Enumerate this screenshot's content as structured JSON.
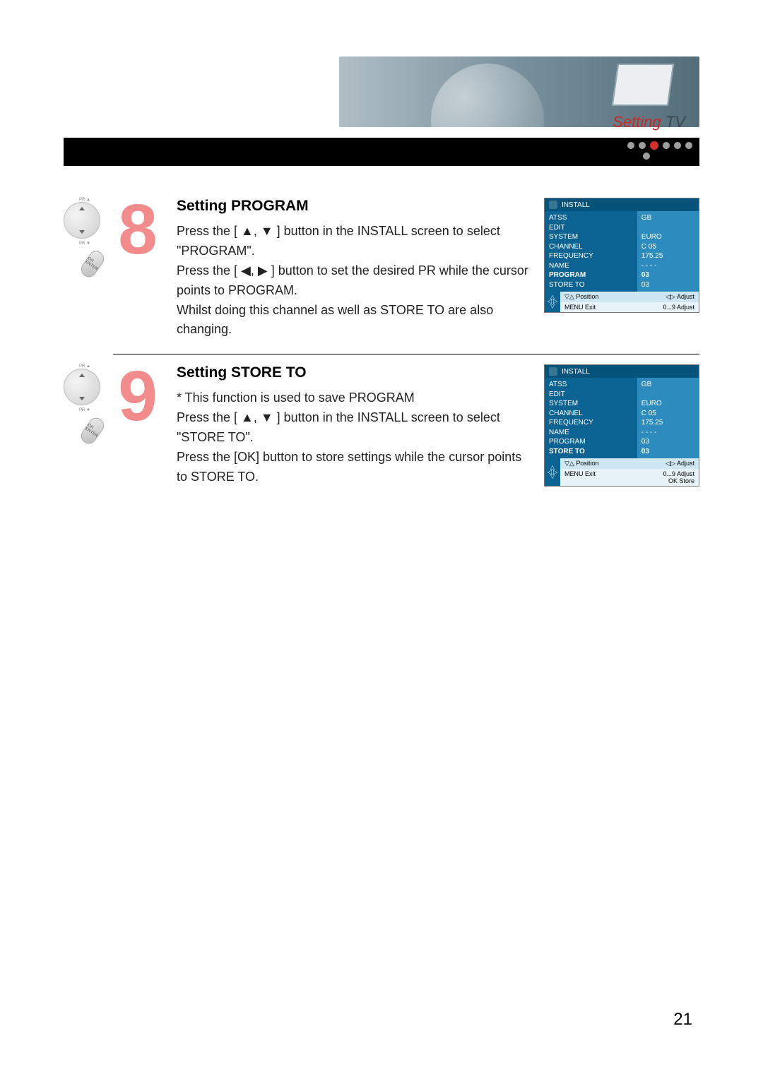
{
  "header": {
    "label_bold": "Setting",
    "label_plain": " TV"
  },
  "page_number": "21",
  "steps": [
    {
      "num": "8",
      "title": "Setting PROGRAM",
      "lines": [
        "Press the [ ▲, ▼ ] button in the INSTALL screen to select \"PROGRAM\".",
        "Press the [ ◀, ▶ ] button to set the desired PR while the cursor points to PROGRAM.",
        "Whilst doing this channel as well as STORE TO are also changing."
      ],
      "remote": {
        "top": "PR ▲",
        "bottom": "PR ▼",
        "ok": "OK ENTER"
      },
      "osd": {
        "title": "INSTALL",
        "rows": [
          {
            "l": "ATSS",
            "r": "GB",
            "bold": false
          },
          {
            "l": "EDIT",
            "r": "",
            "bold": false
          },
          {
            "l": "SYSTEM",
            "r": "EURO",
            "bold": false
          },
          {
            "l": "CHANNEL",
            "r": "C 05",
            "bold": false
          },
          {
            "l": "FREQUENCY",
            "r": "175.25",
            "bold": false
          },
          {
            "l": "NAME",
            "r": "- - - -",
            "bold": false
          },
          {
            "l": "PROGRAM",
            "r": "03",
            "bold": true
          },
          {
            "l": "STORE TO",
            "r": "03",
            "bold": false
          }
        ],
        "footer1_left": "▽△  Position",
        "footer1_right": "◁▷ Adjust",
        "footer2_left": "MENU Exit",
        "footer2_right": "0...9  Adjust"
      }
    },
    {
      "num": "9",
      "title": "Setting STORE TO",
      "lines": [
        "*  This function is used to save PROGRAM",
        "Press the [ ▲, ▼ ] button in the INSTALL screen to select \"STORE TO\".",
        "Press the [OK] button to store settings while the cursor points to STORE TO."
      ],
      "remote": {
        "top": "PR ▲",
        "bottom": "PR ▼",
        "ok": "OK ENTER"
      },
      "osd": {
        "title": "INSTALL",
        "rows": [
          {
            "l": "ATSS",
            "r": "GB",
            "bold": false
          },
          {
            "l": "EDIT",
            "r": "",
            "bold": false
          },
          {
            "l": "SYSTEM",
            "r": "EURO",
            "bold": false
          },
          {
            "l": "CHANNEL",
            "r": "C 05",
            "bold": false
          },
          {
            "l": "FREQUENCY",
            "r": "175.25",
            "bold": false
          },
          {
            "l": "NAME",
            "r": "- - - -",
            "bold": false
          },
          {
            "l": "PROGRAM",
            "r": "03",
            "bold": false
          },
          {
            "l": "STORE TO",
            "r": "03",
            "bold": true
          }
        ],
        "footer1_left": "▽△  Position",
        "footer1_right": "◁▷ Adjust",
        "footer2_left": "MENU Exit",
        "footer2_right_a": "0...9  Adjust",
        "footer2_right_b": "OK  Store"
      }
    }
  ]
}
